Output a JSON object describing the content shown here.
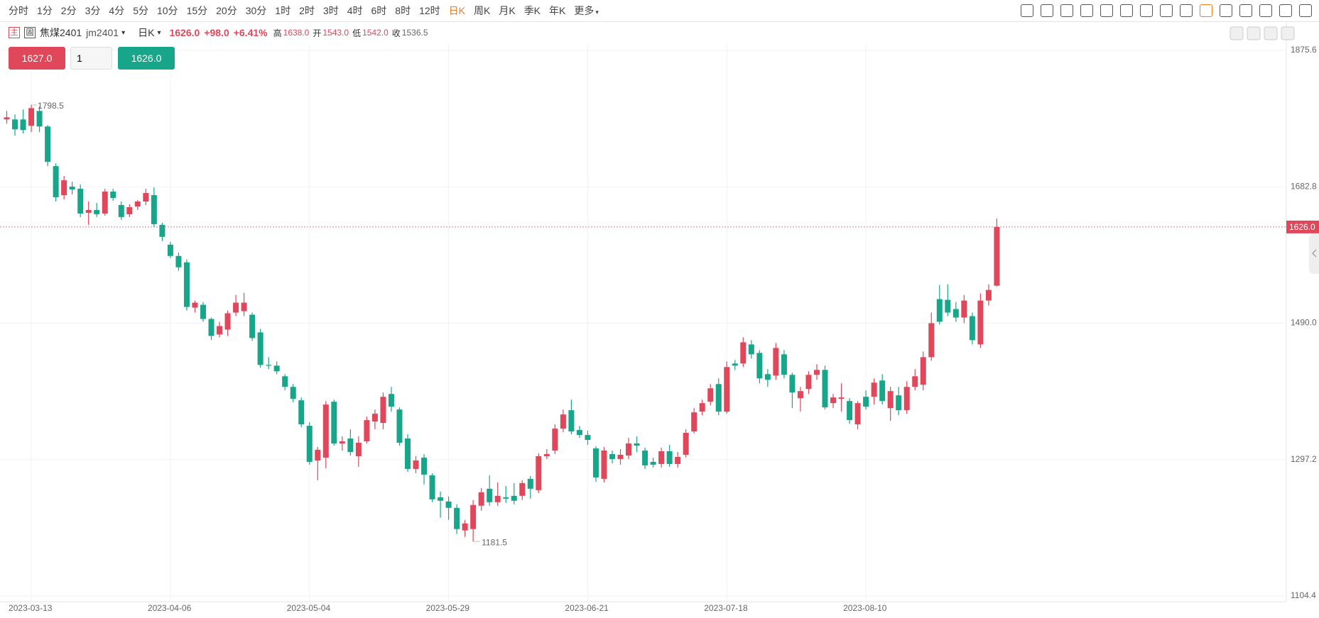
{
  "toolbar": {
    "intervals": [
      "分时",
      "1分",
      "2分",
      "3分",
      "4分",
      "5分",
      "10分",
      "15分",
      "20分",
      "30分",
      "1时",
      "2时",
      "3时",
      "4时",
      "6时",
      "8时",
      "12时",
      "日K",
      "周K",
      "月K",
      "季K",
      "年K"
    ],
    "active": 17,
    "more": "更多"
  },
  "header": {
    "main_tag": "主",
    "fixed_tag": "固",
    "name": "焦煤2401",
    "code": "jm2401",
    "period": "日K",
    "price": "1626.0",
    "change": "+98.0",
    "pct": "+6.41%",
    "high_label": "高",
    "high": "1638.0",
    "open_label": "开",
    "open": "1543.0",
    "low_label": "低",
    "low": "1542.0",
    "close_label": "收",
    "prev_close": "1536.5"
  },
  "order": {
    "sell_price": "1627.0",
    "qty": "1",
    "buy_price": "1626.0"
  },
  "chart_data": {
    "type": "candlestick",
    "up_color": "#e0475a",
    "down_color": "#18a68a",
    "grid": true,
    "ylim": [
      1104.4,
      1875.6
    ],
    "yticks": [
      1104.4,
      1297.2,
      {
        "value": 1490,
        "label": "1490.0"
      },
      1682.8,
      1875.6
    ],
    "categories": [
      null,
      null,
      null,
      "2023-03-13",
      null,
      null,
      null,
      null,
      null,
      null,
      null,
      null,
      null,
      null,
      null,
      null,
      null,
      null,
      null,
      null,
      "2023-04-06",
      null,
      null,
      null,
      null,
      null,
      null,
      null,
      null,
      null,
      null,
      null,
      null,
      null,
      null,
      null,
      null,
      "2023-05-04",
      null,
      null,
      null,
      null,
      null,
      null,
      null,
      null,
      null,
      null,
      null,
      null,
      null,
      null,
      null,
      null,
      "2023-05-29",
      null,
      null,
      null,
      null,
      null,
      null,
      null,
      null,
      null,
      null,
      null,
      null,
      null,
      null,
      null,
      null,
      "2023-06-21",
      null,
      null,
      null,
      null,
      null,
      null,
      null,
      null,
      null,
      null,
      null,
      null,
      null,
      null,
      null,
      null,
      "2023-07-18",
      null,
      null,
      null,
      null,
      null,
      null,
      null,
      null,
      null,
      null,
      null,
      null,
      null,
      null,
      null,
      null,
      "2023-08-10",
      null,
      null,
      null,
      null,
      null,
      null,
      null,
      null,
      null,
      null,
      null,
      null,
      null,
      null,
      null,
      null
    ],
    "ohlc": [
      [
        1778,
        1790,
        1772,
        1781
      ],
      [
        1778,
        1785,
        1755,
        1764
      ],
      [
        1778,
        1792,
        1758,
        1763
      ],
      [
        1769,
        1798.5,
        1760,
        1794
      ],
      [
        1790,
        1796,
        1760,
        1768
      ],
      [
        1768,
        1770,
        1712,
        1718
      ],
      [
        1712,
        1716,
        1662,
        1668
      ],
      [
        1671,
        1698,
        1665,
        1692
      ],
      [
        1683,
        1690,
        1672,
        1679
      ],
      [
        1680,
        1686,
        1640,
        1645
      ],
      [
        1646,
        1662,
        1629,
        1650
      ],
      [
        1650,
        1660,
        1640,
        1644
      ],
      [
        1645,
        1680,
        1642,
        1676
      ],
      [
        1676,
        1680,
        1663,
        1667
      ],
      [
        1657,
        1662,
        1636,
        1640
      ],
      [
        1644,
        1658,
        1640,
        1654
      ],
      [
        1655,
        1664,
        1650,
        1662
      ],
      [
        1662,
        1680,
        1657,
        1674
      ],
      [
        1671,
        1682,
        1626,
        1630
      ],
      [
        1629,
        1632,
        1606,
        1612
      ],
      [
        1601,
        1605,
        1582,
        1585
      ],
      [
        1585,
        1590,
        1564,
        1569
      ],
      [
        1576,
        1580,
        1508,
        1513
      ],
      [
        1512,
        1522,
        1505,
        1519
      ],
      [
        1516,
        1520,
        1492,
        1496
      ],
      [
        1496,
        1498,
        1466,
        1472
      ],
      [
        1474,
        1492,
        1470,
        1486
      ],
      [
        1481,
        1508,
        1472,
        1504
      ],
      [
        1505,
        1530,
        1500,
        1519
      ],
      [
        1507,
        1533,
        1500,
        1519
      ],
      [
        1502,
        1505,
        1465,
        1469
      ],
      [
        1477,
        1482,
        1427,
        1431
      ],
      [
        1431,
        1442,
        1425,
        1430
      ],
      [
        1430,
        1436,
        1418,
        1422
      ],
      [
        1415,
        1418,
        1395,
        1400
      ],
      [
        1400,
        1404,
        1378,
        1383
      ],
      [
        1381,
        1385,
        1343,
        1347
      ],
      [
        1345,
        1350,
        1290,
        1294
      ],
      [
        1296,
        1315,
        1268,
        1311
      ],
      [
        1300,
        1380,
        1285,
        1375
      ],
      [
        1379,
        1382,
        1317,
        1320
      ],
      [
        1320,
        1330,
        1310,
        1323
      ],
      [
        1327,
        1340,
        1303,
        1308
      ],
      [
        1302,
        1330,
        1287,
        1321
      ],
      [
        1323,
        1358,
        1320,
        1353
      ],
      [
        1351,
        1368,
        1340,
        1362
      ],
      [
        1349,
        1392,
        1340,
        1386
      ],
      [
        1390,
        1400,
        1365,
        1372
      ],
      [
        1368,
        1371,
        1317,
        1321
      ],
      [
        1327,
        1333,
        1280,
        1284
      ],
      [
        1284,
        1302,
        1278,
        1296
      ],
      [
        1300,
        1305,
        1262,
        1276
      ],
      [
        1275,
        1278,
        1237,
        1241
      ],
      [
        1244,
        1252,
        1215,
        1239
      ],
      [
        1238,
        1245,
        1212,
        1229
      ],
      [
        1229,
        1234,
        1192,
        1199
      ],
      [
        1197,
        1212,
        1188,
        1207
      ],
      [
        1199,
        1240,
        1181.5,
        1233
      ],
      [
        1232,
        1257,
        1225,
        1251
      ],
      [
        1256,
        1275,
        1232,
        1237
      ],
      [
        1237,
        1265,
        1232,
        1246
      ],
      [
        1244,
        1260,
        1236,
        1242
      ],
      [
        1246,
        1264,
        1234,
        1239
      ],
      [
        1246,
        1268,
        1240,
        1264
      ],
      [
        1270,
        1274,
        1242,
        1256
      ],
      [
        1254,
        1306,
        1250,
        1302
      ],
      [
        1302,
        1312,
        1298,
        1305
      ],
      [
        1310,
        1347,
        1305,
        1341
      ],
      [
        1341,
        1368,
        1336,
        1361
      ],
      [
        1367,
        1382,
        1333,
        1337
      ],
      [
        1339,
        1345,
        1328,
        1332
      ],
      [
        1332,
        1338,
        1318,
        1325
      ],
      [
        1313,
        1316,
        1266,
        1272
      ],
      [
        1270,
        1315,
        1265,
        1310
      ],
      [
        1305,
        1310,
        1292,
        1298
      ],
      [
        1298,
        1312,
        1290,
        1304
      ],
      [
        1303,
        1328,
        1298,
        1320
      ],
      [
        1320,
        1330,
        1308,
        1317
      ],
      [
        1310,
        1314,
        1284,
        1289
      ],
      [
        1294,
        1300,
        1286,
        1290
      ],
      [
        1291,
        1314,
        1286,
        1309
      ],
      [
        1309,
        1318,
        1287,
        1291
      ],
      [
        1291,
        1308,
        1286,
        1301
      ],
      [
        1304,
        1340,
        1300,
        1335
      ],
      [
        1337,
        1370,
        1334,
        1364
      ],
      [
        1365,
        1382,
        1360,
        1377
      ],
      [
        1379,
        1404,
        1374,
        1398
      ],
      [
        1404,
        1412,
        1360,
        1365
      ],
      [
        1365,
        1436,
        1362,
        1428
      ],
      [
        1433,
        1438,
        1424,
        1430
      ],
      [
        1433,
        1470,
        1428,
        1463
      ],
      [
        1460,
        1466,
        1440,
        1446
      ],
      [
        1448,
        1452,
        1405,
        1412
      ],
      [
        1418,
        1425,
        1400,
        1410
      ],
      [
        1416,
        1462,
        1410,
        1455
      ],
      [
        1446,
        1452,
        1412,
        1417
      ],
      [
        1417,
        1420,
        1370,
        1392
      ],
      [
        1384,
        1400,
        1365,
        1394
      ],
      [
        1397,
        1422,
        1390,
        1417
      ],
      [
        1417,
        1432,
        1410,
        1424
      ],
      [
        1424,
        1430,
        1368,
        1371
      ],
      [
        1377,
        1390,
        1370,
        1385
      ],
      [
        1383,
        1405,
        1365,
        1385
      ],
      [
        1380,
        1384,
        1348,
        1353
      ],
      [
        1347,
        1380,
        1340,
        1377
      ],
      [
        1386,
        1395,
        1368,
        1372
      ],
      [
        1386,
        1412,
        1375,
        1406
      ],
      [
        1409,
        1418,
        1375,
        1380
      ],
      [
        1370,
        1400,
        1352,
        1394
      ],
      [
        1388,
        1400,
        1360,
        1367
      ],
      [
        1367,
        1408,
        1362,
        1400
      ],
      [
        1400,
        1425,
        1395,
        1415
      ],
      [
        1403,
        1450,
        1395,
        1442
      ],
      [
        1442,
        1505,
        1437,
        1490
      ],
      [
        1524,
        1544,
        1488,
        1492
      ],
      [
        1523,
        1545,
        1500,
        1505
      ],
      [
        1510,
        1520,
        1492,
        1498
      ],
      [
        1498,
        1530,
        1490,
        1522
      ],
      [
        1500,
        1505,
        1460,
        1466
      ],
      [
        1460,
        1532,
        1455,
        1522
      ],
      [
        1522,
        1545,
        1515,
        1537
      ],
      [
        1543,
        1638,
        1542,
        1626
      ]
    ],
    "max_index": 3,
    "min_index": 57
  }
}
